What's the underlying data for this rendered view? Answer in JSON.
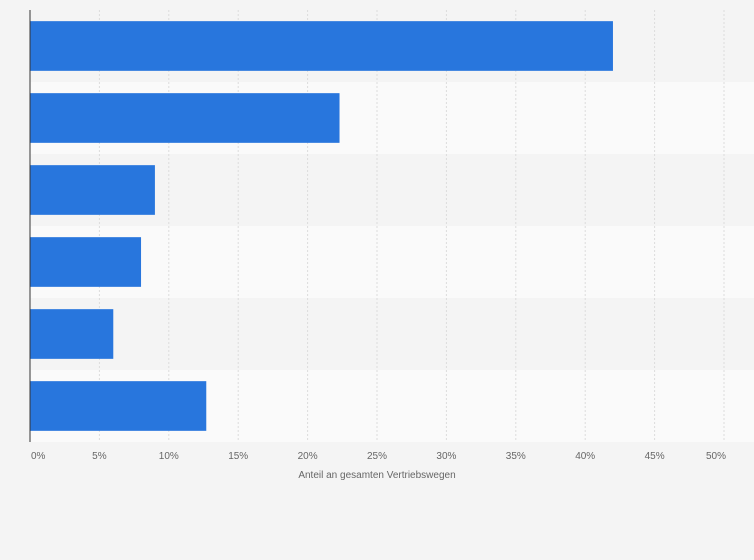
{
  "chart_data": {
    "type": "bar",
    "orientation": "horizontal",
    "categories": [
      "",
      "",
      "",
      "",
      "",
      ""
    ],
    "values": [
      42,
      22.3,
      9,
      8,
      6,
      12.7
    ],
    "title": "",
    "xlabel": "Anteil an gesamten Vertriebswegen",
    "ylabel": "",
    "xlim": [
      0,
      50
    ],
    "xticks": [
      0,
      5,
      10,
      15,
      20,
      25,
      30,
      35,
      40,
      45,
      50
    ],
    "xtick_labels": [
      "0%",
      "5%",
      "10%",
      "15%",
      "20%",
      "25%",
      "30%",
      "35%",
      "40%",
      "45%",
      "50%"
    ],
    "grid": true,
    "legend": "none",
    "colors": {
      "bar": "#2876dd",
      "band_odd": "#f4f4f4",
      "band_even": "#fafafa",
      "grid": "#dcdcdc",
      "axis": "#333333",
      "text": "#666666"
    }
  }
}
